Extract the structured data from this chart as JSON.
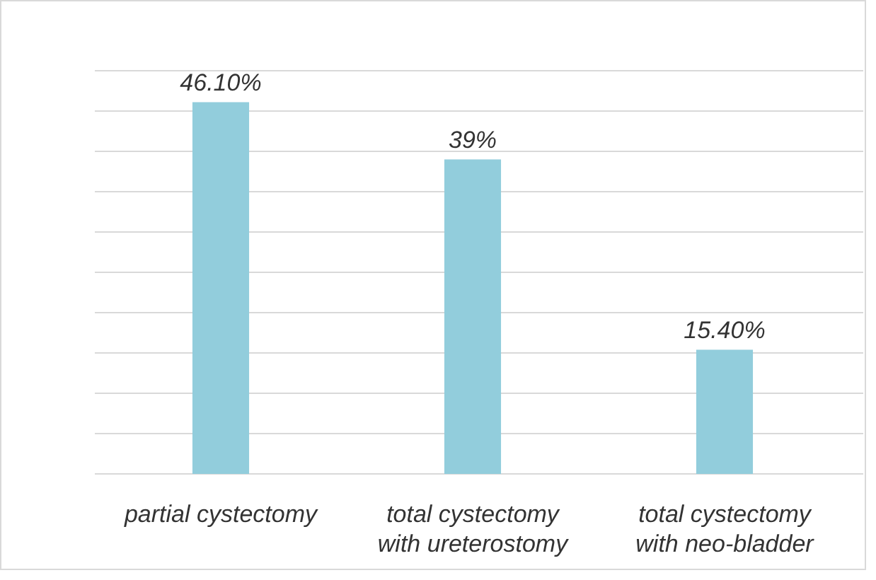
{
  "chart_data": {
    "type": "bar",
    "categories": [
      "partial cystectomy",
      "total cystectomy with ureterostomy",
      "total cystectomy with neo-bladder"
    ],
    "values": [
      46.1,
      39,
      15.4
    ],
    "color": "#92cddc",
    "value_labels": [
      "46.10%",
      "39%",
      "15.40%"
    ],
    "ylim": [
      0,
      50
    ],
    "yticks": [
      {
        "value": 0,
        "label": null
      },
      {
        "value": 5,
        "label": null
      },
      {
        "value": 10,
        "label": null
      },
      {
        "value": 15,
        "label": null
      },
      {
        "value": 20,
        "label": null
      },
      {
        "value": 25,
        "label": null
      },
      {
        "value": 30,
        "label": null
      },
      {
        "value": 35,
        "label": null
      },
      {
        "value": 40,
        "label": null
      },
      {
        "value": 45,
        "label": null
      },
      {
        "value": 50,
        "label": null
      }
    ],
    "grid": true,
    "tick_labels": "x"
  }
}
